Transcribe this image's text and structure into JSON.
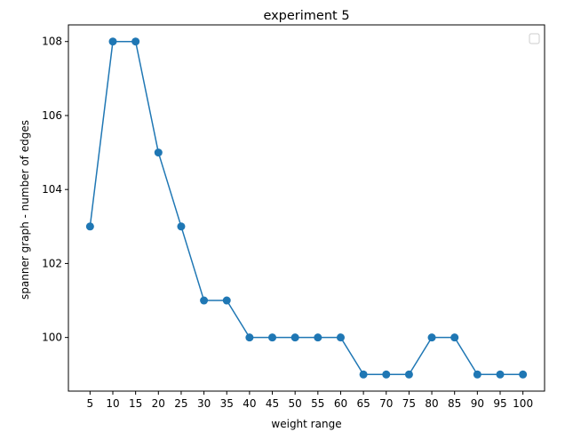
{
  "chart_data": {
    "type": "line",
    "title": "experiment 5",
    "xlabel": "weight range",
    "ylabel": "spanner graph - number of edges",
    "x": [
      5,
      10,
      15,
      20,
      25,
      30,
      35,
      40,
      45,
      50,
      55,
      60,
      65,
      70,
      75,
      80,
      85,
      90,
      95,
      100
    ],
    "x_tick_labels": [
      "5",
      "10",
      "15",
      "20",
      "25",
      "30",
      "35",
      "40",
      "45",
      "50",
      "55",
      "60",
      "65",
      "70",
      "75",
      "80",
      "85",
      "90",
      "95",
      "100"
    ],
    "y_ticks": [
      100,
      102,
      104,
      106,
      108
    ],
    "y_tick_labels": [
      "100",
      "102",
      "104",
      "106",
      "108"
    ],
    "series": [
      {
        "values": [
          103,
          108,
          108,
          105,
          103,
          101,
          101,
          100,
          100,
          100,
          100,
          100,
          99,
          99,
          99,
          100,
          100,
          99,
          99,
          99
        ],
        "color": "#1f77b4",
        "marker": "circle"
      }
    ],
    "xlim": [
      0.25,
      104.75
    ],
    "ylim": [
      98.55,
      108.45
    ],
    "grid": false,
    "legend": {
      "placement": "top-right",
      "entries": []
    }
  }
}
